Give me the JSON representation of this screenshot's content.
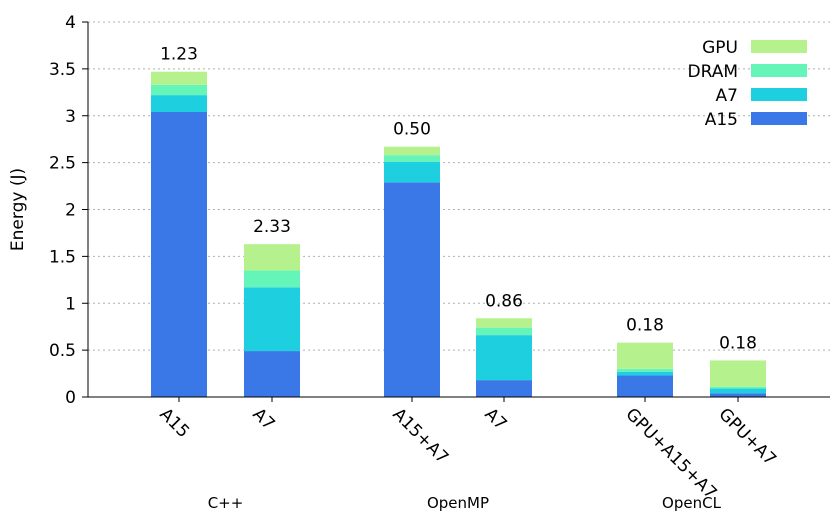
{
  "chart_data": {
    "type": "bar",
    "stacked": true,
    "ylabel": "Energy (J)",
    "ylim": [
      0,
      4
    ],
    "yticks": [
      "0",
      "0.5",
      "1",
      "1.5",
      "2",
      "2.5",
      "3",
      "3.5",
      "4"
    ],
    "grid": true,
    "legend_position": "top-right",
    "categories": [
      "A15",
      "A7",
      "A15+A7",
      "A7",
      "GPU+A15+A7",
      "GPU+A7"
    ],
    "groups": [
      {
        "name": "C++",
        "bars": [
          0,
          1
        ]
      },
      {
        "name": "OpenMP",
        "bars": [
          2,
          3
        ]
      },
      {
        "name": "OpenCL",
        "bars": [
          4,
          5
        ]
      }
    ],
    "series": [
      {
        "name": "A15",
        "color": "#3b78e7",
        "values": [
          3.04,
          0.49,
          2.29,
          0.18,
          0.23,
          0.04
        ]
      },
      {
        "name": "A7",
        "color": "#1ecfe0",
        "values": [
          0.18,
          0.68,
          0.22,
          0.48,
          0.04,
          0.05
        ]
      },
      {
        "name": "DRAM",
        "color": "#66f5b8",
        "values": [
          0.11,
          0.18,
          0.07,
          0.08,
          0.03,
          0.02
        ]
      },
      {
        "name": "GPU",
        "color": "#b5f28e",
        "values": [
          0.14,
          0.28,
          0.09,
          0.1,
          0.28,
          0.28
        ]
      }
    ],
    "bar_labels": [
      "1.23",
      "2.33",
      "0.50",
      "0.86",
      "0.18",
      "0.18"
    ]
  }
}
